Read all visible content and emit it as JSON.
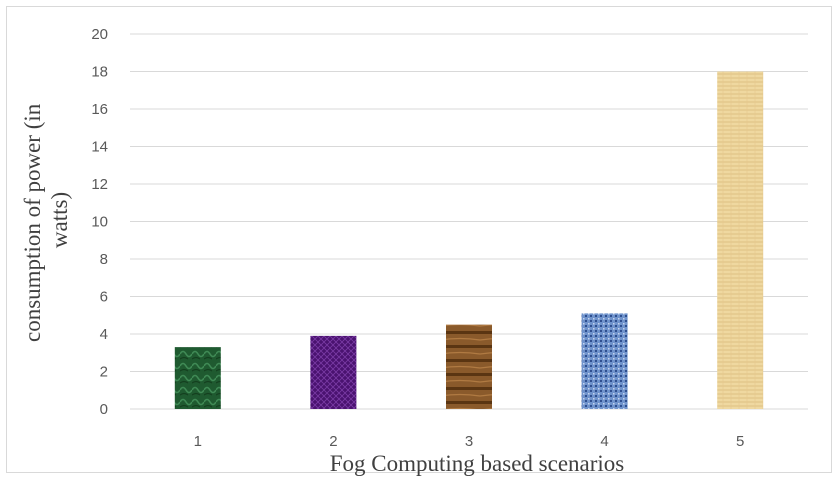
{
  "chart_data": {
    "type": "bar",
    "title": "",
    "xlabel": "Fog Computing based scenarios",
    "ylabel_lines": [
      "consumption of power (in",
      "watts)"
    ],
    "categories": [
      "1",
      "2",
      "3",
      "4",
      "5"
    ],
    "values": [
      3.3,
      3.9,
      4.5,
      5.1,
      18.0
    ],
    "ylim": [
      0,
      20
    ],
    "ytick_step": 2,
    "grid": true,
    "legend": "none",
    "bar_fills": [
      {
        "pattern": "green-marble",
        "base": "#1f5a30",
        "accent": "#3f8a55"
      },
      {
        "pattern": "purple-mesh",
        "base": "#4a1270",
        "accent": "#7a3aa5"
      },
      {
        "pattern": "wood-grain",
        "base": "#8a5a2b",
        "accent": "#5a3512"
      },
      {
        "pattern": "blue-texture",
        "base": "#6f93cc",
        "accent": "#2f4f8f"
      },
      {
        "pattern": "papyrus",
        "base": "#efd8a0",
        "accent": "#d9b878"
      }
    ],
    "colors": {
      "grid": "#d9d9d9",
      "tick_text": "#595959",
      "axis_title": "#404040"
    }
  }
}
